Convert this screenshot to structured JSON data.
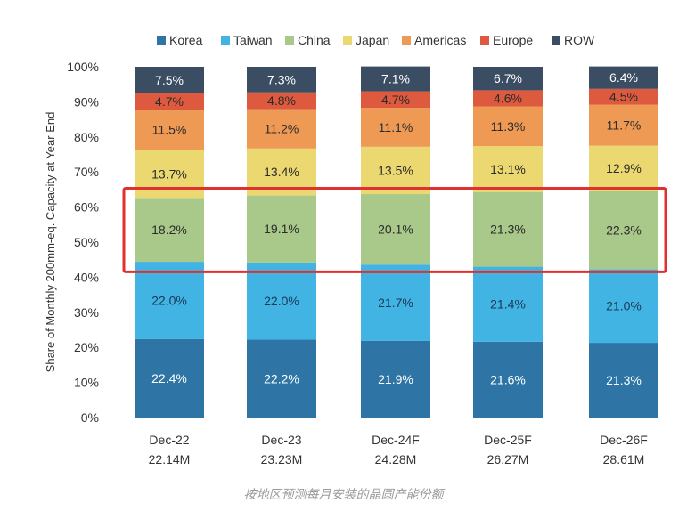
{
  "chart_data": {
    "type": "bar",
    "stacked": true,
    "ylabel": "Share of Monthly 200mm-eq. Capacity at Year End",
    "ylim": [
      0,
      100
    ],
    "y_ticks": [
      "0%",
      "10%",
      "20%",
      "30%",
      "40%",
      "50%",
      "60%",
      "70%",
      "80%",
      "90%",
      "100%"
    ],
    "categories": [
      "Dec-22",
      "Dec-23",
      "Dec-24F",
      "Dec-25F",
      "Dec-26F"
    ],
    "category_subtitles": [
      "22.14M",
      "23.23M",
      "24.28M",
      "26.27M",
      "28.61M"
    ],
    "series": [
      {
        "name": "Korea",
        "color": "#2e75a6",
        "label_color": "#ffffff",
        "values": [
          22.4,
          22.2,
          21.9,
          21.6,
          21.3
        ],
        "labels": [
          "22.4%",
          "22.2%",
          "21.9%",
          "21.6%",
          "21.3%"
        ]
      },
      {
        "name": "Taiwan",
        "color": "#41b4e3",
        "label_color": "#1a3a55",
        "values": [
          22.0,
          22.0,
          21.7,
          21.4,
          21.0
        ],
        "labels": [
          "22.0%",
          "22.0%",
          "21.7%",
          "21.4%",
          "21.0%"
        ]
      },
      {
        "name": "China",
        "color": "#a9c98a",
        "label_color": "#2b2b2b",
        "values": [
          18.2,
          19.1,
          20.1,
          21.3,
          22.3
        ],
        "labels": [
          "18.2%",
          "19.1%",
          "20.1%",
          "21.3%",
          "22.3%"
        ]
      },
      {
        "name": "Japan",
        "color": "#ecd870",
        "label_color": "#2b2b2b",
        "values": [
          13.7,
          13.4,
          13.5,
          13.1,
          12.9
        ],
        "labels": [
          "13.7%",
          "13.4%",
          "13.5%",
          "13.1%",
          "12.9%"
        ]
      },
      {
        "name": "Americas",
        "color": "#ee9a55",
        "label_color": "#2b2b2b",
        "values": [
          11.5,
          11.2,
          11.1,
          11.3,
          11.7
        ],
        "labels": [
          "11.5%",
          "11.2%",
          "11.1%",
          "11.3%",
          "11.7%"
        ]
      },
      {
        "name": "Europe",
        "color": "#dd5a3f",
        "label_color": "#2b2b2b",
        "values": [
          4.7,
          4.8,
          4.7,
          4.6,
          4.5
        ],
        "labels": [
          "4.7%",
          "4.8%",
          "4.7%",
          "4.6%",
          "4.5%"
        ]
      },
      {
        "name": "ROW",
        "color": "#3a4d63",
        "label_color": "#ffffff",
        "values": [
          7.5,
          7.3,
          7.1,
          6.7,
          6.4
        ],
        "labels": [
          "7.5%",
          "7.3%",
          "7.1%",
          "6.7%",
          "6.4%"
        ]
      }
    ],
    "highlight": {
      "series": "China",
      "color": "#e03030"
    },
    "legend": "top"
  },
  "caption": "按地区预测每月安装的晶圆产能份额"
}
